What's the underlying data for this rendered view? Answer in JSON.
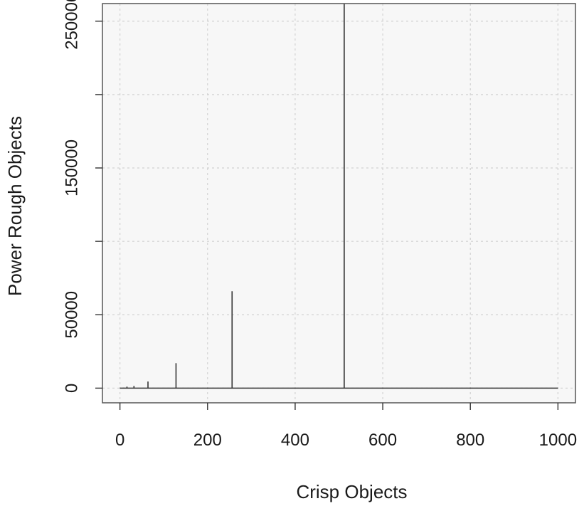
{
  "chart_data": {
    "type": "line",
    "plot_style": "vertical-lines",
    "title": "",
    "xlabel": "Crisp Objects",
    "ylabel": "Power Rough Objects",
    "xlim": [
      -40,
      1040
    ],
    "ylim": [
      -10000,
      262000
    ],
    "x_ticks": [
      0,
      200,
      400,
      600,
      800,
      1000
    ],
    "x_tick_labels": [
      "0",
      "200",
      "400",
      "600",
      "800",
      "1000"
    ],
    "y_ticks": [
      0,
      50000,
      100000,
      150000,
      200000,
      250000
    ],
    "y_tick_labels": [
      "0",
      "50000",
      "",
      "150000",
      "",
      "250000"
    ],
    "grid": true,
    "background_color": "#f7f7f7",
    "line_color": "#333333",
    "baseline": {
      "x_start": 0,
      "x_end": 1000,
      "y": 0
    },
    "series": [
      {
        "x": [
          1,
          2,
          4,
          8,
          16,
          32,
          64,
          128,
          256,
          512
        ],
        "values": [
          2,
          4,
          16,
          256,
          1024,
          1500,
          4500,
          17000,
          66000,
          262000
        ]
      }
    ]
  }
}
